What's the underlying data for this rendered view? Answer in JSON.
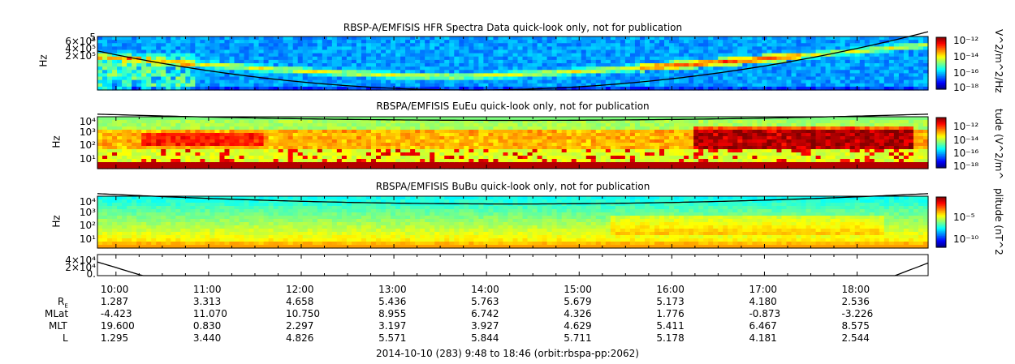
{
  "chart_data": [
    {
      "type": "heatmap",
      "title": "RBSP-A/EMFISIS  HFR Spectra Data quick-look only, not for publication",
      "ylabel": "Hz",
      "y_ticks": [
        "6×10⁵",
        "4×10⁵",
        "2×10⁵"
      ],
      "y_top_label": "5",
      "colorbar_label": "V^2/m^2/Hz",
      "colorbar_ticks": [
        "10⁻¹²",
        "10⁻¹⁴",
        "10⁻¹⁶",
        "10⁻¹⁸"
      ],
      "colorbar_range": [
        -18,
        -12
      ]
    },
    {
      "type": "heatmap",
      "title": "RBSPA/EMFISIS  EuEu quick-look only, not for publication",
      "ylabel": "Hz",
      "y_ticks": [
        "10⁴",
        "10³",
        "10²",
        "10¹"
      ],
      "colorbar_label": "tude (V^2/m^",
      "colorbar_ticks": [
        "10⁻¹²",
        "10⁻¹⁴",
        "10⁻¹⁶",
        "10⁻¹⁸"
      ],
      "colorbar_range": [
        -18,
        -12
      ]
    },
    {
      "type": "heatmap",
      "title": "RBSPA/EMFISIS  BuBu quick-look only, not for publication",
      "ylabel": "Hz",
      "y_ticks": [
        "10⁴",
        "10³",
        "10²",
        "10¹"
      ],
      "colorbar_label": "plitude (nT^2",
      "colorbar_ticks": [
        "10⁻⁵",
        "10⁻¹⁰"
      ],
      "colorbar_range": [
        -12,
        -3
      ]
    },
    {
      "type": "line",
      "y_ticks": [
        "4×10⁴",
        "2×10⁴",
        "0."
      ],
      "ylim": [
        0,
        40000
      ]
    }
  ],
  "time_axis": {
    "labels": [
      "10:00",
      "11:00",
      "12:00",
      "13:00",
      "14:00",
      "15:00",
      "16:00",
      "17:00",
      "18:00"
    ],
    "hours": [
      10,
      11,
      12,
      13,
      14,
      15,
      16,
      17,
      18
    ],
    "start_hour": 9.8,
    "end_hour": 18.7667
  },
  "ephemeris": {
    "rows": [
      {
        "label": "R",
        "sub": "E",
        "values": [
          "1.287",
          "3.313",
          "4.658",
          "5.436",
          "5.763",
          "5.679",
          "5.173",
          "4.180",
          "2.536"
        ]
      },
      {
        "label": "MLat",
        "sub": "",
        "values": [
          "-4.423",
          "11.070",
          "10.750",
          "8.955",
          "6.742",
          "4.326",
          "1.776",
          "-0.873",
          "-3.226"
        ]
      },
      {
        "label": "MLT",
        "sub": "",
        "values": [
          "19.600",
          "0.830",
          "2.297",
          "3.197",
          "3.927",
          "4.629",
          "5.411",
          "6.467",
          "8.575"
        ]
      },
      {
        "label": "L",
        "sub": "",
        "values": [
          "1.295",
          "3.440",
          "4.826",
          "5.571",
          "5.844",
          "5.711",
          "5.178",
          "4.181",
          "2.544"
        ]
      }
    ]
  },
  "footer": "2014-10-10 (283) 9:48 to 18:46 (orbit:rbspa-pp:2062)"
}
